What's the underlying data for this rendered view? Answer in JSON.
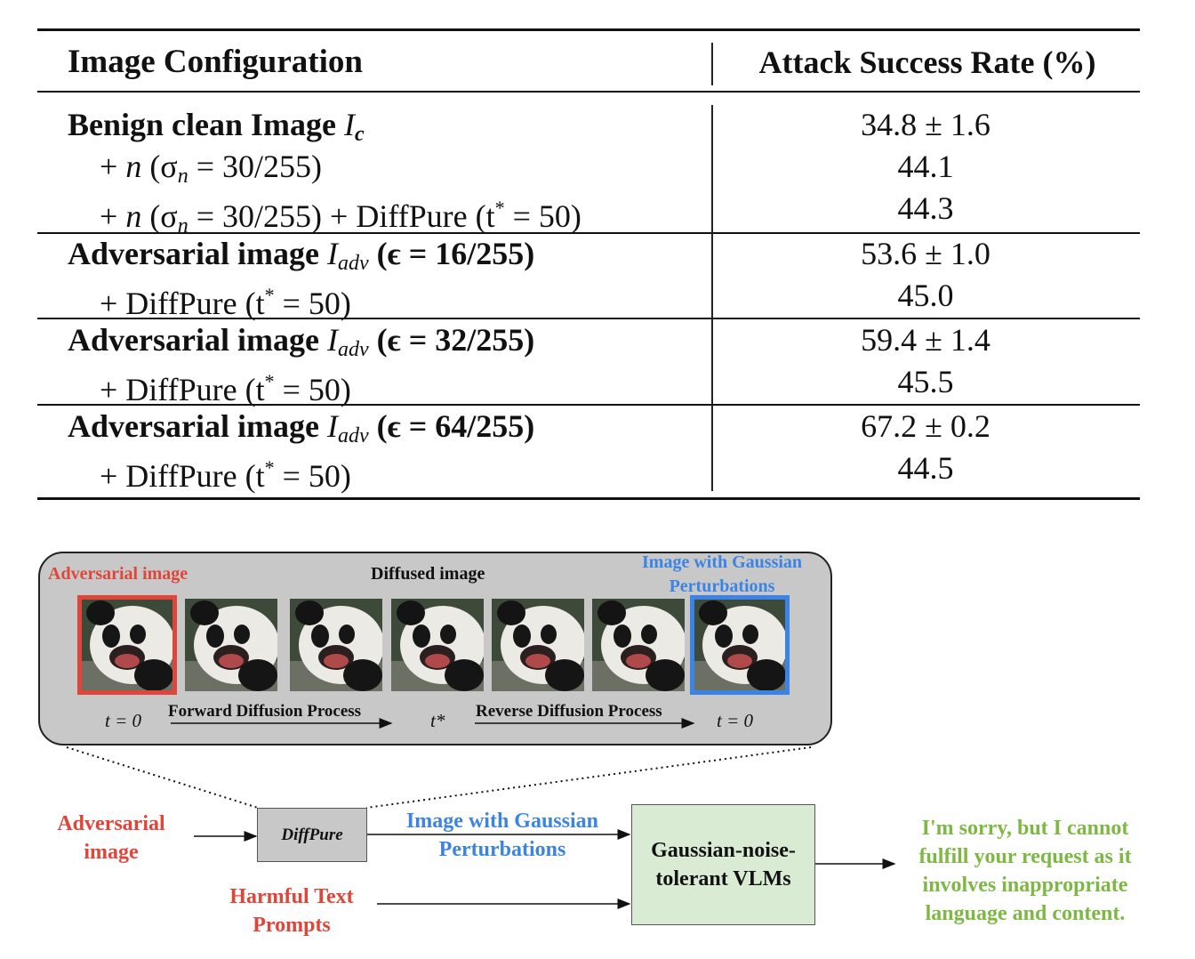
{
  "table": {
    "header": {
      "config": "Image Configuration",
      "asr": "Attack Success Rate (%)"
    },
    "rows": [
      {
        "prefix": "Benign clean Image ",
        "var": "I",
        "sub": "c",
        "rest": "",
        "value": "34.8 ± 1.6"
      },
      {
        "prefix": "+ ",
        "var": "n",
        "sub": "",
        "rest": " (σ",
        "rest_sub": "n",
        "rest2": " = 30/255)",
        "value": "44.1"
      },
      {
        "prefix": "+ ",
        "var": "n",
        "sub": "",
        "rest": " (σ",
        "rest_sub": "n",
        "rest2": " = 30/255) + DiffPure (t",
        "rest_sup": "*",
        "rest3": " = 50)",
        "value": "44.3"
      },
      {
        "prefix": "Adversarial image ",
        "var": "I",
        "sub": "adv",
        "rest": " (ϵ = 16/255)",
        "value": "53.6 ± 1.0"
      },
      {
        "prefix": "+ DiffPure (t",
        "sup": "*",
        "rest": " = 50)",
        "value": "45.0"
      },
      {
        "prefix": "Adversarial image ",
        "var": "I",
        "sub": "adv",
        "rest": " (ϵ = 32/255)",
        "value": "59.4 ± 1.4"
      },
      {
        "prefix": "+ DiffPure (t",
        "sup": "*",
        "rest": " = 50)",
        "value": "45.5"
      },
      {
        "prefix": "Adversarial image ",
        "var": "I",
        "sub": "adv",
        "rest": " (ϵ = 64/255)",
        "value": "67.2 ± 0.2"
      },
      {
        "prefix": "+ DiffPure (t",
        "sup": "*",
        "rest": " = 50)",
        "value": "44.5"
      }
    ]
  },
  "diagram": {
    "panel": {
      "adv_label": "Adversarial image",
      "diffused_label": "Diffused image",
      "gauss_label_1": "Image with Gaussian",
      "gauss_label_2": "Perturbations",
      "t0_left": "t = 0",
      "forward": "Forward Diffusion Process",
      "tstar": "t*",
      "reverse": "Reverse Diffusion Process",
      "t0_right": "t = 0"
    },
    "flow": {
      "input_1": "Adversarial",
      "input_2": "image",
      "diffpure": "DiffPure",
      "mid_1": "Image with Gaussian",
      "mid_2": "Perturbations",
      "vlm_1": "Gaussian-noise-",
      "vlm_2": "tolerant VLMs",
      "prompt_1": "Harmful Text",
      "prompt_2": "Prompts",
      "out_1": "I'm sorry, but I cannot",
      "out_2": "fulfill your request as it",
      "out_3": "involves inappropriate",
      "out_4": "language and content."
    },
    "colors": {
      "red": "#e0453a",
      "blue": "#3b84e6",
      "green": "#7cb842",
      "vlm_box": "#d9ebd3",
      "panel": "#c8c8c8"
    },
    "icons": [
      "panda-image"
    ]
  }
}
